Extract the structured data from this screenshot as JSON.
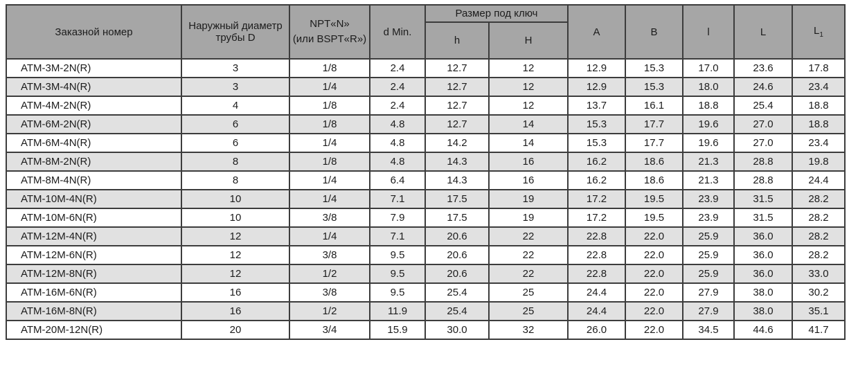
{
  "table": {
    "colors": {
      "header_bg": "#a6a6a6",
      "row_bg": "#ffffff",
      "row_alt_bg": "#e1e1e1",
      "border": "#3c3c3c",
      "text": "#1c1c1c"
    },
    "headers": {
      "order_number": "Заказной номер",
      "outer_diameter": "Наружный диаметр трубы D",
      "thread": "NPT«N»\n(или BSPT«R»)",
      "d_min": "d Min.",
      "wrench_group": "Размер под ключ",
      "h_lower": "h",
      "h_upper": "H",
      "col_a": "A",
      "col_b": "B",
      "col_l_lower": "l",
      "col_l_upper": "L",
      "col_l1_base": "L",
      "col_l1_sub": "1"
    },
    "rows": [
      [
        "ATM-3M-2N(R)",
        "3",
        "1/8",
        "2.4",
        "12.7",
        "12",
        "12.9",
        "15.3",
        "17.0",
        "23.6",
        "17.8"
      ],
      [
        "ATM-3M-4N(R)",
        "3",
        "1/4",
        "2.4",
        "12.7",
        "12",
        "12.9",
        "15.3",
        "18.0",
        "24.6",
        "23.4"
      ],
      [
        "ATM-4M-2N(R)",
        "4",
        "1/8",
        "2.4",
        "12.7",
        "12",
        "13.7",
        "16.1",
        "18.8",
        "25.4",
        "18.8"
      ],
      [
        "ATM-6M-2N(R)",
        "6",
        "1/8",
        "4.8",
        "12.7",
        "14",
        "15.3",
        "17.7",
        "19.6",
        "27.0",
        "18.8"
      ],
      [
        "ATM-6M-4N(R)",
        "6",
        "1/4",
        "4.8",
        "14.2",
        "14",
        "15.3",
        "17.7",
        "19.6",
        "27.0",
        "23.4"
      ],
      [
        "ATM-8M-2N(R)",
        "8",
        "1/8",
        "4.8",
        "14.3",
        "16",
        "16.2",
        "18.6",
        "21.3",
        "28.8",
        "19.8"
      ],
      [
        "ATM-8M-4N(R)",
        "8",
        "1/4",
        "6.4",
        "14.3",
        "16",
        "16.2",
        "18.6",
        "21.3",
        "28.8",
        "24.4"
      ],
      [
        "ATM-10M-4N(R)",
        "10",
        "1/4",
        "7.1",
        "17.5",
        "19",
        "17.2",
        "19.5",
        "23.9",
        "31.5",
        "28.2"
      ],
      [
        "ATM-10M-6N(R)",
        "10",
        "3/8",
        "7.9",
        "17.5",
        "19",
        "17.2",
        "19.5",
        "23.9",
        "31.5",
        "28.2"
      ],
      [
        "ATM-12M-4N(R)",
        "12",
        "1/4",
        "7.1",
        "20.6",
        "22",
        "22.8",
        "22.0",
        "25.9",
        "36.0",
        "28.2"
      ],
      [
        "ATM-12M-6N(R)",
        "12",
        "3/8",
        "9.5",
        "20.6",
        "22",
        "22.8",
        "22.0",
        "25.9",
        "36.0",
        "28.2"
      ],
      [
        "ATM-12M-8N(R)",
        "12",
        "1/2",
        "9.5",
        "20.6",
        "22",
        "22.8",
        "22.0",
        "25.9",
        "36.0",
        "33.0"
      ],
      [
        "ATM-16M-6N(R)",
        "16",
        "3/8",
        "9.5",
        "25.4",
        "25",
        "24.4",
        "22.0",
        "27.9",
        "38.0",
        "30.2"
      ],
      [
        "ATM-16M-8N(R)",
        "16",
        "1/2",
        "11.9",
        "25.4",
        "25",
        "24.4",
        "22.0",
        "27.9",
        "38.0",
        "35.1"
      ],
      [
        "ATM-20M-12N(R)",
        "20",
        "3/4",
        "15.9",
        "30.0",
        "32",
        "26.0",
        "22.0",
        "34.5",
        "44.6",
        "41.7"
      ]
    ]
  }
}
